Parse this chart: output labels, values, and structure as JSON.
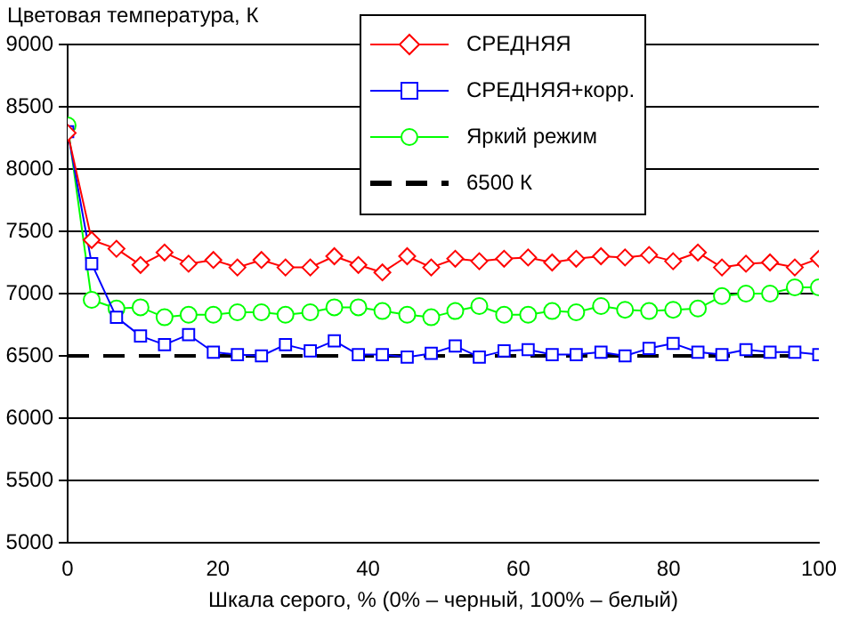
{
  "chart_data": {
    "type": "line",
    "ylabel": "Цветовая температура, К",
    "xlabel": "Шкала серого, % (0% – черный, 100% – белый)",
    "x": [
      0,
      3.2,
      6.5,
      9.7,
      12.9,
      16.1,
      19.4,
      22.6,
      25.8,
      29,
      32.3,
      35.5,
      38.7,
      41.9,
      45.2,
      48.4,
      51.6,
      54.8,
      58.1,
      61.3,
      64.5,
      67.7,
      71,
      74.2,
      77.4,
      80.6,
      83.9,
      87.1,
      90.3,
      93.5,
      96.8,
      100
    ],
    "xlim": [
      0,
      100
    ],
    "xticks": [
      0,
      20,
      40,
      60,
      80,
      100
    ],
    "ylim": [
      5000,
      9000
    ],
    "yticks": [
      5000,
      5500,
      6000,
      6500,
      7000,
      7500,
      8000,
      8500,
      9000
    ],
    "grid": "y",
    "legend": "top right",
    "series": [
      {
        "name": "СРЕДНЯЯ",
        "color": "#ff0000",
        "marker": "diamond",
        "values": [
          8290,
          7430,
          7360,
          7230,
          7330,
          7240,
          7270,
          7210,
          7270,
          7210,
          7210,
          7300,
          7230,
          7170,
          7300,
          7210,
          7280,
          7260,
          7280,
          7290,
          7250,
          7280,
          7300,
          7290,
          7310,
          7260,
          7330,
          7210,
          7240,
          7250,
          7210,
          7280
        ]
      },
      {
        "name": "СРЕДНЯЯ+корр.",
        "color": "#0000ff",
        "marker": "square",
        "values": [
          8300,
          7240,
          6810,
          6660,
          6590,
          6670,
          6530,
          6510,
          6500,
          6590,
          6540,
          6620,
          6510,
          6510,
          6490,
          6520,
          6580,
          6490,
          6540,
          6550,
          6510,
          6510,
          6530,
          6500,
          6560,
          6600,
          6530,
          6510,
          6550,
          6530,
          6530,
          6510
        ]
      },
      {
        "name": "Яркий режим",
        "color": "#00ff00",
        "marker": "circle",
        "values": [
          8350,
          6950,
          6880,
          6890,
          6810,
          6830,
          6830,
          6850,
          6850,
          6830,
          6850,
          6890,
          6890,
          6860,
          6830,
          6810,
          6860,
          6900,
          6830,
          6830,
          6860,
          6850,
          6900,
          6870,
          6860,
          6870,
          6880,
          6980,
          7000,
          7000,
          7050,
          7050
        ]
      },
      {
        "name": "6500 К",
        "color": "#000000",
        "marker": "none",
        "line_style": "dashed",
        "x": [
          0,
          100
        ],
        "values": [
          6500,
          6500
        ]
      }
    ]
  }
}
